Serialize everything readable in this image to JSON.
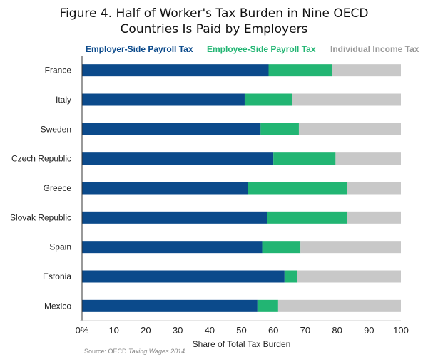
{
  "chart_data": {
    "type": "bar",
    "orientation": "horizontal",
    "stacked": true,
    "title": "Figure 4. Half of Worker's Tax Burden in Nine OECD Countries Is Paid by Employers",
    "title_line1": "Figure 4. Half of Worker's Tax Burden in Nine OECD",
    "title_line2": "Countries Is Paid by Employers",
    "categories": [
      "France",
      "Italy",
      "Sweden",
      "Czech Republic",
      "Greece",
      "Slovak Republic",
      "Spain",
      "Estonia",
      "Mexico"
    ],
    "series": [
      {
        "name": "Employer-Side Payroll Tax",
        "color": "#0b4a8b",
        "values": [
          58.5,
          51,
          56,
          60,
          52,
          58,
          56.5,
          63.5,
          55
        ]
      },
      {
        "name": "Employee-Side Payroll Tax",
        "color": "#22b573",
        "values": [
          20,
          15,
          12,
          19.5,
          31,
          25,
          12,
          4,
          6.5
        ]
      },
      {
        "name": "Individual Income Tax",
        "color": "#c8c8c8",
        "values": [
          21.5,
          34,
          32,
          20.5,
          17,
          17,
          31.5,
          32.5,
          38.5
        ]
      }
    ],
    "xlabel": "Share of Total Tax Burden",
    "xticks": [
      "0%",
      "10",
      "20",
      "30",
      "40",
      "50",
      "60",
      "70",
      "80",
      "90",
      "100"
    ],
    "xlim": [
      0,
      100
    ],
    "legend": "top",
    "grid": false
  },
  "source": {
    "prefix": "Source: OECD ",
    "title": "Taxing Wages 2014",
    "suffix": "."
  }
}
